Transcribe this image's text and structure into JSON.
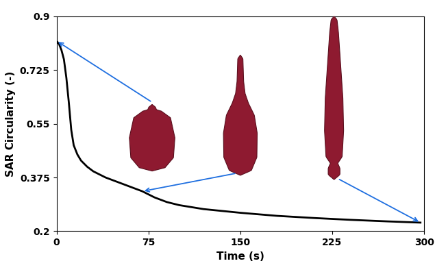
{
  "chart_data": {
    "type": "line",
    "x_label": "Time (s)",
    "y_label": "SAR Circularity (-)",
    "x": [
      0,
      2,
      4,
      6,
      8,
      10,
      12,
      14,
      17,
      20,
      25,
      30,
      40,
      50,
      60,
      70,
      80,
      90,
      100,
      120,
      150,
      180,
      210,
      240,
      270,
      297
    ],
    "values": [
      0.82,
      0.81,
      0.79,
      0.76,
      0.7,
      0.62,
      0.53,
      0.48,
      0.45,
      0.43,
      0.41,
      0.395,
      0.375,
      0.36,
      0.345,
      0.33,
      0.31,
      0.295,
      0.285,
      0.272,
      0.26,
      0.25,
      0.243,
      0.237,
      0.232,
      0.228
    ],
    "color": "#000000",
    "xlim": [
      0,
      300
    ],
    "xticks": [
      0,
      75,
      150,
      225,
      300
    ],
    "ylim": [
      0.2,
      0.9
    ],
    "yticks": [
      0.2,
      0.375,
      0.55,
      0.725,
      0.9
    ],
    "grid": false
  }
}
